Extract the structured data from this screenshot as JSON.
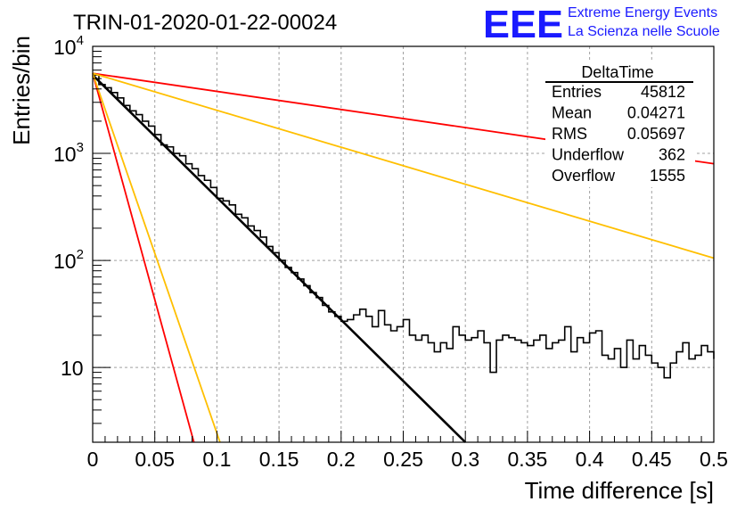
{
  "title": "TRIN-01-2020-01-22-00024",
  "logo": {
    "mark": "EEE",
    "line1": "Extreme Energy Events",
    "line2": "La Scienza nelle Scuole",
    "color": "#1a1aff"
  },
  "stats": {
    "name": "DeltaTime",
    "rows": [
      {
        "label": "Entries",
        "value": "45812"
      },
      {
        "label": "Mean",
        "value": "0.04271"
      },
      {
        "label": "RMS",
        "value": "0.05697"
      },
      {
        "label": "Underflow",
        "value": "362"
      },
      {
        "label": "Overflow",
        "value": "1555"
      }
    ]
  },
  "chart_data": {
    "type": "line",
    "xlabel": "Time difference [s]",
    "ylabel": "Entries/bin",
    "xlim": [
      0,
      0.5
    ],
    "ylim": [
      2,
      10000
    ],
    "yscale": "log",
    "grid": true,
    "x_ticks": [
      "0",
      "0.05",
      "0.1",
      "0.15",
      "0.2",
      "0.25",
      "0.3",
      "0.35",
      "0.4",
      "0.45",
      "0.5"
    ],
    "y_ticks": [
      {
        "value": 10,
        "base": "10",
        "exp": ""
      },
      {
        "value": 100,
        "base": "10",
        "exp": "2"
      },
      {
        "value": 1000,
        "base": "10",
        "exp": "3"
      },
      {
        "value": 10000,
        "base": "10",
        "exp": "4"
      }
    ],
    "histogram": {
      "bin_width": 0.005,
      "color": "#000000",
      "values": [
        5400,
        4400,
        4100,
        3700,
        3300,
        2800,
        2500,
        2300,
        2000,
        1800,
        1500,
        1200,
        1150,
        1000,
        950,
        800,
        720,
        620,
        560,
        480,
        380,
        360,
        330,
        270,
        250,
        210,
        190,
        165,
        135,
        118,
        100,
        86,
        77,
        67,
        58,
        50,
        45,
        38,
        33,
        30,
        27,
        28,
        31,
        35,
        30,
        24,
        34,
        25,
        22,
        24,
        28,
        20,
        18,
        20,
        17,
        14,
        17,
        15,
        24,
        20,
        18,
        19,
        22,
        17,
        9,
        18,
        20,
        19,
        18,
        17,
        16,
        18,
        20,
        15,
        17,
        18,
        24,
        14,
        19,
        17,
        21,
        22,
        13,
        12,
        15,
        10,
        18,
        12,
        16,
        13,
        11,
        10,
        8,
        11,
        14,
        17,
        12,
        13,
        16,
        14,
        12
      ]
    },
    "series": [
      {
        "color": "#000000",
        "x": [
          0,
          0.3
        ],
        "y": [
          5400,
          2
        ]
      },
      {
        "color": "#ff0000",
        "x": [
          0,
          0.5
        ],
        "y": [
          5600,
          800
        ]
      },
      {
        "color": "#ffbf00",
        "x": [
          0,
          0.5
        ],
        "y": [
          5600,
          105
        ]
      },
      {
        "color": "#ff0000",
        "x": [
          0,
          0.0815
        ],
        "y": [
          5600,
          2
        ]
      },
      {
        "color": "#ffbf00",
        "x": [
          0,
          0.1025
        ],
        "y": [
          5600,
          2
        ]
      }
    ]
  }
}
